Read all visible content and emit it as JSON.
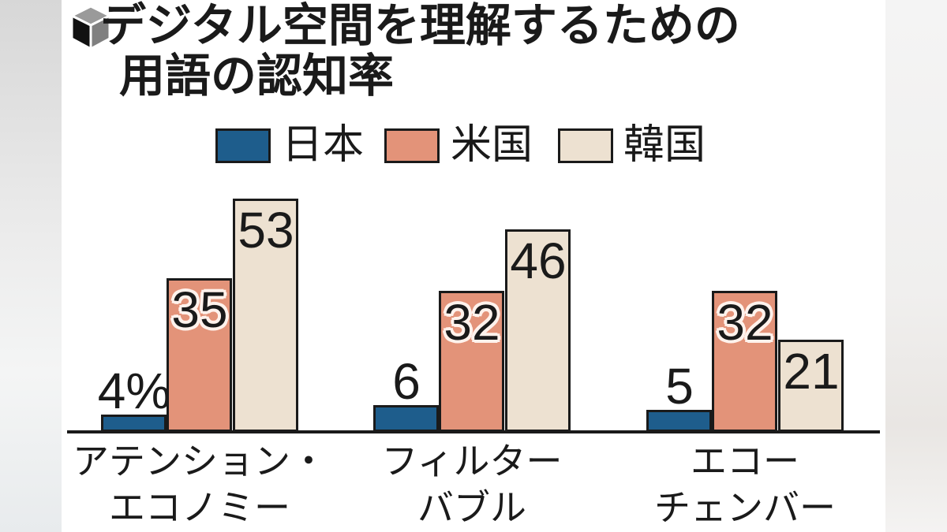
{
  "header": {
    "title_line1": "デジタル空間を理解するための",
    "title_line2": "用語の認知率"
  },
  "legend": [
    {
      "label": "日本",
      "color": "#1e5d8c"
    },
    {
      "label": "米国",
      "color": "#e39379"
    },
    {
      "label": "韓国",
      "color": "#ede1d1"
    }
  ],
  "chart_data": {
    "type": "bar",
    "title": "デジタル空間を理解するための用語の認知率",
    "unit": "%",
    "categories": [
      [
        "アテンション・",
        "エコノミー"
      ],
      [
        "フィルター",
        "バブル"
      ],
      [
        "エコー",
        "チェンバー"
      ]
    ],
    "series": [
      {
        "key": "japan",
        "name": "日本",
        "color": "#1e5d8c",
        "values": [
          4,
          6,
          5
        ],
        "labels": [
          "4%",
          "6",
          "5"
        ],
        "label_position": "above"
      },
      {
        "key": "usa",
        "name": "米国",
        "color": "#e39379",
        "values": [
          35,
          32,
          32
        ],
        "labels": [
          "35",
          "32",
          "32"
        ],
        "label_position": "inside-halo"
      },
      {
        "key": "korea",
        "name": "韓国",
        "color": "#ede1d1",
        "values": [
          53,
          46,
          21
        ],
        "labels": [
          "53",
          "46",
          "21"
        ],
        "label_position": "inside"
      }
    ],
    "ylim": [
      0,
      60
    ],
    "grid": false,
    "axes": "baseline-only",
    "legend_position": "top",
    "bar_border_color": "#1a1a1a",
    "text_color": "#1a1a1a"
  }
}
